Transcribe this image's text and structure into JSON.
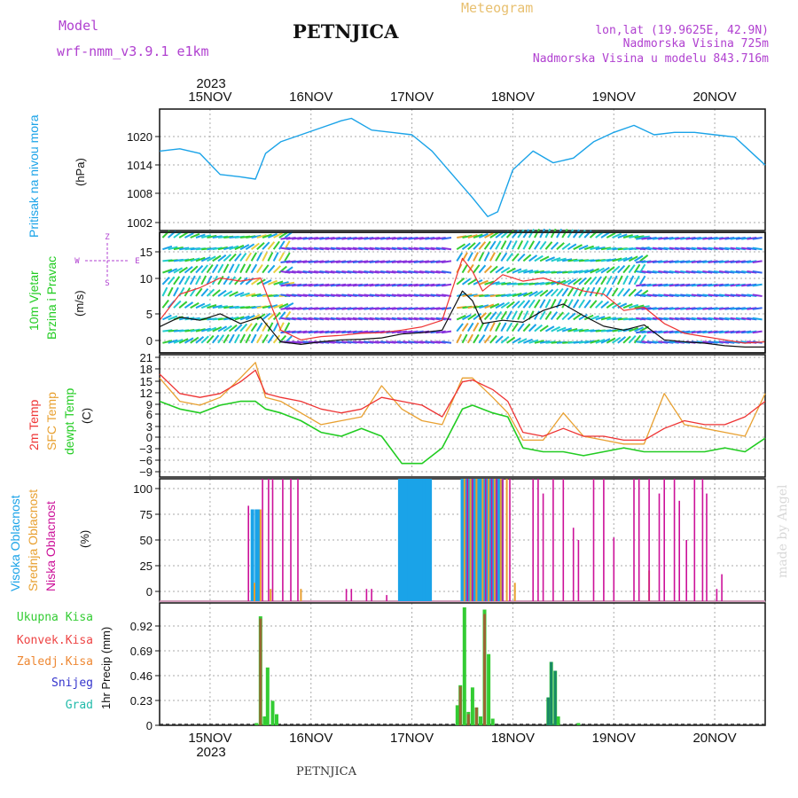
{
  "header": {
    "model_label": "Model",
    "model_name": "wrf-nmm_v3.9.1 e1km",
    "station": "PETNJICA",
    "meteogram": "Meteogram",
    "lonlat": "lon,lat (19.9625E, 42.9N)",
    "altitude": "Nadmorska Visina 725m",
    "model_altitude": "Nadmorska Visina u modelu 843.716m",
    "footer_station": "PETNJICA",
    "credit": "made by Angel"
  },
  "colors": {
    "pressure": "#1aa3e8",
    "wind_label": "#22cc22",
    "temp2m": "#ee3333",
    "sfctemp": "#e8a030",
    "dewpt": "#22cc22",
    "high_cloud": "#1aa3e8",
    "mid_cloud": "#e8a030",
    "low_cloud": "#cc1199",
    "total_precip": "#33cc33",
    "conv_precip": "#ee4444",
    "frozen_precip": "#ee8833",
    "snow": "#3333cc",
    "hail": "#22bbaa",
    "title_purple": "#b040d0",
    "meteogram_title": "#e8c070"
  },
  "chart_data": [
    {
      "type": "line",
      "panel": "pressure",
      "ylabel_lines": [
        "Pritisak na nivou mora"
      ],
      "unit": "(hPa)",
      "x_ticks_top": [
        "15NOV",
        "16NOV",
        "17NOV",
        "18NOV",
        "19NOV",
        "20NOV"
      ],
      "x_year_top": "2023",
      "y_ticks": [
        "1020",
        "1014",
        "1008",
        "1002"
      ],
      "ylim": [
        999,
        1025
      ],
      "x_days": [
        14.5,
        14.7,
        14.9,
        15.1,
        15.3,
        15.45,
        15.55,
        15.7,
        15.9,
        16.1,
        16.3,
        16.4,
        16.6,
        16.8,
        17.0,
        17.2,
        17.4,
        17.6,
        17.75,
        17.85,
        18.0,
        18.2,
        18.4,
        18.6,
        18.8,
        19.0,
        19.2,
        19.4,
        19.6,
        19.8,
        20.0,
        20.2,
        20.4,
        20.5
      ],
      "series": [
        {
          "values": [
            1016,
            1016.5,
            1015.5,
            1011,
            1010.5,
            1010,
            1015.5,
            1018,
            1019.5,
            1021,
            1022.5,
            1023,
            1020.5,
            1020,
            1019.5,
            1016,
            1011,
            1006,
            1002,
            1003,
            1012,
            1016,
            1013.5,
            1014.5,
            1018,
            1020,
            1021.5,
            1019.5,
            1020,
            1020,
            1019.5,
            1019,
            1015,
            1013
          ]
        }
      ]
    },
    {
      "type": "line",
      "panel": "wind",
      "ylabel_lines": [
        "10m Vjetar",
        "Brzina i Pravac"
      ],
      "unit": "(m/s)",
      "compass": [
        "Z",
        "W",
        "E",
        "S"
      ],
      "y_ticks": [
        "15",
        "10",
        "5",
        "0"
      ],
      "ylim": [
        -0.5,
        18
      ],
      "x_days": [
        14.5,
        14.7,
        14.9,
        15.1,
        15.3,
        15.5,
        15.7,
        15.9,
        16.1,
        16.3,
        16.5,
        16.7,
        16.9,
        17.1,
        17.3,
        17.5,
        17.6,
        17.7,
        17.9,
        18.1,
        18.3,
        18.5,
        18.7,
        18.9,
        19.1,
        19.3,
        19.5,
        19.7,
        19.9,
        20.1,
        20.3,
        20.5
      ],
      "series": [
        {
          "name": "speed",
          "values": [
            3.5,
            5.0,
            4.5,
            5.5,
            4.0,
            5.0,
            1.2,
            0.8,
            1.2,
            1.5,
            1.6,
            1.8,
            2.4,
            2.6,
            3.0,
            9.0,
            7.5,
            4.0,
            4.5,
            4.2,
            6.0,
            7.0,
            5.2,
            3.6,
            3.0,
            3.8,
            1.5,
            1.2,
            1.0,
            0.6,
            0.4,
            0.4
          ]
        },
        {
          "name": "gust",
          "values": [
            4.5,
            8.5,
            9.5,
            11.0,
            10.5,
            11.0,
            3.0,
            1.5,
            2.0,
            2.2,
            2.5,
            2.6,
            3.0,
            3.5,
            4.5,
            14.0,
            12.0,
            9.0,
            11.5,
            10.5,
            11.0,
            10.0,
            9.0,
            8.5,
            6.0,
            6.5,
            4.0,
            2.5,
            2.0,
            1.5,
            1.0,
            1.2
          ]
        }
      ]
    },
    {
      "type": "line",
      "panel": "temperature",
      "ylabel_lines": [
        "2m Temp",
        "SFC Temp",
        "dewpt Temp"
      ],
      "unit": "(C)",
      "y_ticks": [
        "21",
        "18",
        "15",
        "12",
        "9",
        "6",
        "3",
        "0",
        "−3",
        "−6",
        "−9"
      ],
      "ylim": [
        -10.5,
        21
      ],
      "x_days": [
        14.5,
        14.7,
        14.9,
        15.1,
        15.3,
        15.45,
        15.55,
        15.7,
        15.9,
        16.1,
        16.3,
        16.5,
        16.7,
        16.9,
        17.1,
        17.3,
        17.5,
        17.6,
        17.8,
        17.95,
        18.1,
        18.3,
        18.5,
        18.7,
        18.9,
        19.1,
        19.3,
        19.5,
        19.7,
        19.9,
        20.1,
        20.3,
        20.5
      ],
      "series": [
        {
          "name": "2m Temp",
          "values": [
            16,
            11,
            10,
            11,
            14,
            17,
            11,
            10,
            9,
            7,
            6,
            7,
            10,
            9,
            8,
            5,
            14,
            14.5,
            12,
            9,
            1,
            0,
            2,
            0,
            0,
            -1,
            -1,
            2,
            4,
            3,
            3,
            5,
            9
          ]
        },
        {
          "name": "SFC Temp",
          "values": [
            15,
            9,
            8,
            10,
            15,
            19,
            10,
            9,
            6,
            3,
            4,
            5,
            13,
            7,
            4,
            3,
            15,
            15,
            10,
            6,
            -1,
            -1,
            6,
            0,
            -1,
            -2,
            -2,
            11,
            3,
            2,
            1,
            0,
            11
          ]
        },
        {
          "name": "dewpt Temp",
          "values": [
            9,
            7,
            6,
            8,
            9,
            9,
            7,
            6,
            4,
            1,
            0,
            2,
            0,
            -7,
            -7,
            -3,
            7,
            8,
            6,
            5,
            -3,
            -4,
            -4,
            -5,
            -4,
            -3,
            -4,
            -4,
            -4,
            -4,
            -3,
            -4,
            -0.5
          ]
        }
      ]
    },
    {
      "type": "bar",
      "panel": "cloud",
      "ylabel_lines": [
        "Visoka Oblacnost",
        "Srednja Oblacnost",
        "Niska Oblacnost"
      ],
      "unit": "(%)",
      "y_ticks": [
        "100",
        "75",
        "50",
        "25",
        "0"
      ],
      "ylim": [
        0,
        100
      ],
      "series": [
        {
          "name": "Visoka Oblacnost",
          "x_days": [
            15.42,
            15.46,
            15.48,
            16.88,
            16.91,
            16.94,
            16.97,
            17.0,
            17.03,
            17.06,
            17.09,
            17.12,
            17.15,
            17.18,
            17.5,
            17.53,
            17.56,
            17.59,
            17.62,
            17.65,
            17.68,
            17.71,
            17.74,
            17.77,
            17.8,
            17.83,
            17.86,
            17.89
          ],
          "values": [
            75,
            75,
            75,
            100,
            100,
            100,
            100,
            100,
            100,
            100,
            100,
            100,
            100,
            100,
            100,
            100,
            100,
            100,
            100,
            100,
            100,
            100,
            100,
            100,
            100,
            100,
            100,
            100
          ]
        },
        {
          "name": "Srednja Oblacnost",
          "x_days": [
            15.44,
            15.5,
            15.6,
            15.9,
            17.52,
            17.58,
            17.64,
            17.7,
            17.76,
            17.82,
            17.88,
            17.94,
            18.02,
            19.35
          ],
          "values": [
            15,
            75,
            10,
            10,
            100,
            100,
            100,
            100,
            100,
            100,
            100,
            100,
            15,
            25
          ]
        },
        {
          "name": "Niska Oblacnost",
          "x_days": [
            15.38,
            15.52,
            15.58,
            15.62,
            15.72,
            15.8,
            15.87,
            16.35,
            16.4,
            16.55,
            16.6,
            16.75,
            17.55,
            17.6,
            17.73,
            17.79,
            17.84,
            17.9,
            17.97,
            18.2,
            18.25,
            18.3,
            18.4,
            18.5,
            18.6,
            18.65,
            18.8,
            18.9,
            19.0,
            19.2,
            19.25,
            19.35,
            19.45,
            19.5,
            19.6,
            19.65,
            19.72,
            19.8,
            19.88,
            19.92,
            20.02,
            20.07
          ],
          "values": [
            78,
            100,
            100,
            100,
            100,
            100,
            100,
            10,
            10,
            10,
            10,
            5,
            100,
            100,
            100,
            100,
            100,
            100,
            100,
            100,
            100,
            88,
            100,
            100,
            60,
            50,
            100,
            100,
            52,
            100,
            100,
            100,
            88,
            100,
            100,
            82,
            50,
            100,
            100,
            88,
            10,
            22
          ]
        }
      ]
    },
    {
      "type": "bar",
      "panel": "precipitation",
      "ylabel_lines": [
        "1hr Precip (mm)"
      ],
      "legend": [
        "Ukupna Kisa",
        "Konvek.Kisa",
        "Zaledj.Kisa",
        "Snijeg",
        "Grad"
      ],
      "x_ticks_bottom": [
        "15NOV",
        "16NOV",
        "17NOV",
        "18NOV",
        "19NOV",
        "20NOV"
      ],
      "x_year_bottom": "2023",
      "y_ticks": [
        "0.92",
        "0.69",
        "0.46",
        "0.23",
        "0"
      ],
      "ylim": [
        0,
        1.1
      ],
      "series": [
        {
          "name": "Ukupna Kisa",
          "x_days": [
            15.46,
            15.5,
            15.54,
            15.57,
            15.62,
            15.66,
            17.45,
            17.48,
            17.52,
            17.56,
            17.6,
            17.64,
            17.68,
            17.72,
            17.76,
            17.8,
            18.35,
            18.38,
            18.42,
            18.45,
            18.65
          ],
          "values": [
            0.02,
            0.98,
            0.08,
            0.52,
            0.22,
            0.1,
            0.18,
            0.36,
            1.06,
            0.12,
            0.34,
            0.16,
            0.08,
            1.04,
            0.64,
            0.06,
            0.25,
            0.57,
            0.49,
            0.08,
            0.02
          ]
        },
        {
          "name": "Konvek.Kisa",
          "x_days": [
            15.5,
            17.48,
            17.56,
            17.64,
            17.72
          ],
          "values": [
            0.96,
            0.35,
            0.1,
            0.16,
            1.0
          ]
        },
        {
          "name": "Grad",
          "x_days": [
            18.35,
            18.38,
            18.42
          ],
          "values": [
            0.25,
            0.57,
            0.49
          ]
        }
      ]
    }
  ]
}
